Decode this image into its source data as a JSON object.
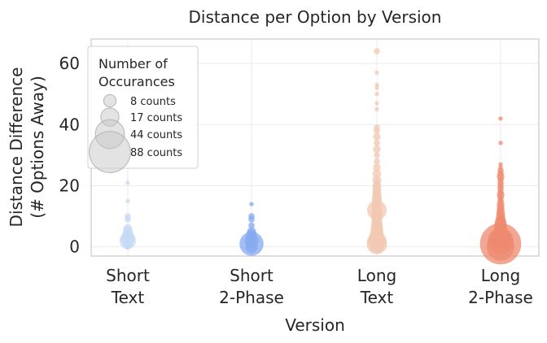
{
  "chart_data": {
    "type": "scatter",
    "title": "Distance per Option by Version",
    "xlabel": "Version",
    "ylabel": [
      "Distance Difference",
      "(# Options Away)"
    ],
    "categories": [
      {
        "lines": [
          "Short",
          "Text"
        ],
        "color": "#c5d9f6"
      },
      {
        "lines": [
          "Short",
          "2-Phase"
        ],
        "color": "#86a9f0"
      },
      {
        "lines": [
          "Long",
          "Text"
        ],
        "color": "#f2c8b1"
      },
      {
        "lines": [
          "Long",
          "2-Phase"
        ],
        "color": "#ee8a6f"
      }
    ],
    "ylim": [
      -3,
      68
    ],
    "yticks": [
      0,
      20,
      40,
      60
    ],
    "grid": true,
    "legend": {
      "title": [
        "Number of",
        "Occurances"
      ],
      "placement": "top-left",
      "entries": [
        {
          "label": "8 counts",
          "count": 8
        },
        {
          "label": "17 counts",
          "count": 17
        },
        {
          "label": "44 counts",
          "count": 44
        },
        {
          "label": "88 counts",
          "count": 88
        }
      ]
    },
    "series": [
      {
        "category": 0,
        "points": [
          {
            "y": 0,
            "count": 2
          },
          {
            "y": 1,
            "count": 5
          },
          {
            "y": 2,
            "count": 14
          },
          {
            "y": 3,
            "count": 10
          },
          {
            "y": 4,
            "count": 6
          },
          {
            "y": 5,
            "count": 5
          },
          {
            "y": 6,
            "count": 4
          },
          {
            "y": 9,
            "count": 2
          },
          {
            "y": 10,
            "count": 2
          },
          {
            "y": 15,
            "count": 1
          },
          {
            "y": 21,
            "count": 1
          }
        ]
      },
      {
        "category": 1,
        "points": [
          {
            "y": 0,
            "count": 8
          },
          {
            "y": 1,
            "count": 30
          },
          {
            "y": 2,
            "count": 10
          },
          {
            "y": 3,
            "count": 5
          },
          {
            "y": 4,
            "count": 6
          },
          {
            "y": 5,
            "count": 4
          },
          {
            "y": 7,
            "count": 2
          },
          {
            "y": 9,
            "count": 2
          },
          {
            "y": 10,
            "count": 2
          },
          {
            "y": 14,
            "count": 1
          }
        ]
      },
      {
        "category": 2,
        "points": [
          {
            "y": 0,
            "count": 10
          },
          {
            "y": 1,
            "count": 22
          },
          {
            "y": 2,
            "count": 18
          },
          {
            "y": 3,
            "count": 12
          },
          {
            "y": 4,
            "count": 10
          },
          {
            "y": 5,
            "count": 8
          },
          {
            "y": 6,
            "count": 8
          },
          {
            "y": 7,
            "count": 7
          },
          {
            "y": 8,
            "count": 6
          },
          {
            "y": 9,
            "count": 6
          },
          {
            "y": 10,
            "count": 6
          },
          {
            "y": 11,
            "count": 7
          },
          {
            "y": 12,
            "count": 20
          },
          {
            "y": 13,
            "count": 6
          },
          {
            "y": 14,
            "count": 5
          },
          {
            "y": 15,
            "count": 5
          },
          {
            "y": 16,
            "count": 5
          },
          {
            "y": 17,
            "count": 4
          },
          {
            "y": 18,
            "count": 4
          },
          {
            "y": 19,
            "count": 4
          },
          {
            "y": 20,
            "count": 4
          },
          {
            "y": 21,
            "count": 3
          },
          {
            "y": 22,
            "count": 4
          },
          {
            "y": 24,
            "count": 4
          },
          {
            "y": 26,
            "count": 3
          },
          {
            "y": 28,
            "count": 2
          },
          {
            "y": 30,
            "count": 2
          },
          {
            "y": 32,
            "count": 3
          },
          {
            "y": 34,
            "count": 2
          },
          {
            "y": 36,
            "count": 3
          },
          {
            "y": 38,
            "count": 2
          },
          {
            "y": 39,
            "count": 2
          },
          {
            "y": 45,
            "count": 1
          },
          {
            "y": 47,
            "count": 1
          },
          {
            "y": 50,
            "count": 1
          },
          {
            "y": 52,
            "count": 1
          },
          {
            "y": 53,
            "count": 1
          },
          {
            "y": 57,
            "count": 1
          },
          {
            "y": 64,
            "count": 2
          }
        ]
      },
      {
        "category": 3,
        "points": [
          {
            "y": 0,
            "count": 40
          },
          {
            "y": 1,
            "count": 88
          },
          {
            "y": 2,
            "count": 35
          },
          {
            "y": 3,
            "count": 20
          },
          {
            "y": 4,
            "count": 14
          },
          {
            "y": 5,
            "count": 10
          },
          {
            "y": 6,
            "count": 9
          },
          {
            "y": 7,
            "count": 8
          },
          {
            "y": 8,
            "count": 7
          },
          {
            "y": 9,
            "count": 5
          },
          {
            "y": 10,
            "count": 4
          },
          {
            "y": 11,
            "count": 4
          },
          {
            "y": 12,
            "count": 3
          },
          {
            "y": 13,
            "count": 3
          },
          {
            "y": 14,
            "count": 3
          },
          {
            "y": 15,
            "count": 2
          },
          {
            "y": 16,
            "count": 2
          },
          {
            "y": 17,
            "count": 3
          },
          {
            "y": 18,
            "count": 2
          },
          {
            "y": 19,
            "count": 2
          },
          {
            "y": 20,
            "count": 2
          },
          {
            "y": 21,
            "count": 2
          },
          {
            "y": 22,
            "count": 2
          },
          {
            "y": 23,
            "count": 3
          },
          {
            "y": 24,
            "count": 2
          },
          {
            "y": 25,
            "count": 2
          },
          {
            "y": 26,
            "count": 1
          },
          {
            "y": 27,
            "count": 1
          },
          {
            "y": 34,
            "count": 1
          },
          {
            "y": 42,
            "count": 1
          }
        ]
      }
    ]
  }
}
